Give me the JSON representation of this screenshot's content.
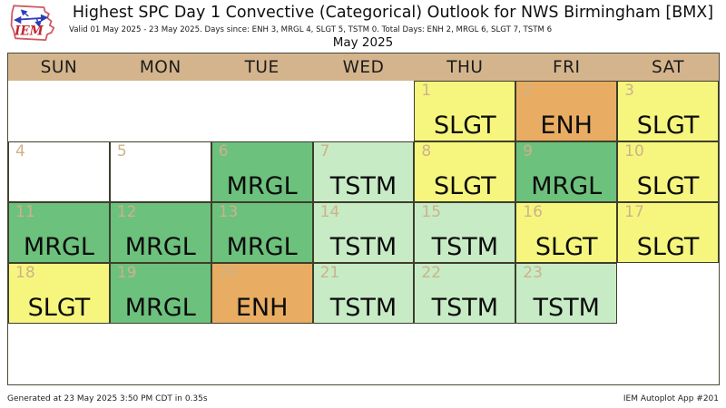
{
  "header": {
    "logo_text": "IEM",
    "title": "Highest SPC Day 1 Convective (Categorical) Outlook for NWS Birmingham [BMX]",
    "subtitle": "Valid 01 May 2025 - 23 May 2025. Days since: ENH 3, MRGL 4, SLGT 5, TSTM 0. Total Days: ENH 2, MRGL 6, SLGT 7, TSTM 6",
    "month_title": "May 2025"
  },
  "colors": {
    "weekday_header_bg": "#d4b48c",
    "day_number": "#cdb28a",
    "cell_border": "#3e3e2c",
    "SLGT": "#f6f67e",
    "ENH": "#e8ad62",
    "MRGL": "#6cc17d",
    "TSTM": "#c7ebc5",
    "NONE": "#ffffff"
  },
  "calendar": {
    "weekdays": [
      "SUN",
      "MON",
      "TUE",
      "WED",
      "THU",
      "FRI",
      "SAT"
    ],
    "weeks": [
      [
        null,
        null,
        null,
        null,
        {
          "day": 1,
          "category": "SLGT"
        },
        {
          "day": 2,
          "category": "ENH"
        },
        {
          "day": 3,
          "category": "SLGT"
        }
      ],
      [
        {
          "day": 4,
          "category": "NONE"
        },
        {
          "day": 5,
          "category": "NONE"
        },
        {
          "day": 6,
          "category": "MRGL"
        },
        {
          "day": 7,
          "category": "TSTM"
        },
        {
          "day": 8,
          "category": "SLGT"
        },
        {
          "day": 9,
          "category": "MRGL"
        },
        {
          "day": 10,
          "category": "SLGT"
        }
      ],
      [
        {
          "day": 11,
          "category": "MRGL"
        },
        {
          "day": 12,
          "category": "MRGL"
        },
        {
          "day": 13,
          "category": "MRGL"
        },
        {
          "day": 14,
          "category": "TSTM"
        },
        {
          "day": 15,
          "category": "TSTM"
        },
        {
          "day": 16,
          "category": "SLGT"
        },
        {
          "day": 17,
          "category": "SLGT"
        }
      ],
      [
        {
          "day": 18,
          "category": "SLGT"
        },
        {
          "day": 19,
          "category": "MRGL"
        },
        {
          "day": 20,
          "category": "ENH"
        },
        {
          "day": 21,
          "category": "TSTM"
        },
        {
          "day": 22,
          "category": "TSTM"
        },
        {
          "day": 23,
          "category": "TSTM"
        },
        null
      ],
      [
        null,
        null,
        null,
        null,
        null,
        null,
        null
      ]
    ]
  },
  "chart_data": {
    "type": "heatmap",
    "title": "Highest SPC Day 1 Convective (Categorical) Outlook for NWS Birmingham [BMX]",
    "subtitle": "Valid 01 May 2025 - 23 May 2025. Days since: ENH 3, MRGL 4, SLGT 5, TSTM 0. Total Days: ENH 2, MRGL 6, SLGT 7, TSTM 6",
    "month": "May 2025",
    "legend": {
      "TSTM": "#c7ebc5",
      "MRGL": "#6cc17d",
      "SLGT": "#f6f67e",
      "ENH": "#e8ad62",
      "NONE": "#ffffff"
    },
    "days": [
      {
        "date": "2025-05-01",
        "outlook": "SLGT"
      },
      {
        "date": "2025-05-02",
        "outlook": "ENH"
      },
      {
        "date": "2025-05-03",
        "outlook": "SLGT"
      },
      {
        "date": "2025-05-04",
        "outlook": "NONE"
      },
      {
        "date": "2025-05-05",
        "outlook": "NONE"
      },
      {
        "date": "2025-05-06",
        "outlook": "MRGL"
      },
      {
        "date": "2025-05-07",
        "outlook": "TSTM"
      },
      {
        "date": "2025-05-08",
        "outlook": "SLGT"
      },
      {
        "date": "2025-05-09",
        "outlook": "MRGL"
      },
      {
        "date": "2025-05-10",
        "outlook": "SLGT"
      },
      {
        "date": "2025-05-11",
        "outlook": "MRGL"
      },
      {
        "date": "2025-05-12",
        "outlook": "MRGL"
      },
      {
        "date": "2025-05-13",
        "outlook": "MRGL"
      },
      {
        "date": "2025-05-14",
        "outlook": "TSTM"
      },
      {
        "date": "2025-05-15",
        "outlook": "TSTM"
      },
      {
        "date": "2025-05-16",
        "outlook": "SLGT"
      },
      {
        "date": "2025-05-17",
        "outlook": "SLGT"
      },
      {
        "date": "2025-05-18",
        "outlook": "SLGT"
      },
      {
        "date": "2025-05-19",
        "outlook": "MRGL"
      },
      {
        "date": "2025-05-20",
        "outlook": "ENH"
      },
      {
        "date": "2025-05-21",
        "outlook": "TSTM"
      },
      {
        "date": "2025-05-22",
        "outlook": "TSTM"
      },
      {
        "date": "2025-05-23",
        "outlook": "TSTM"
      }
    ]
  },
  "footer": {
    "left": "Generated at 23 May 2025 3:50 PM CDT in 0.35s",
    "right": "IEM Autoplot App #201"
  }
}
